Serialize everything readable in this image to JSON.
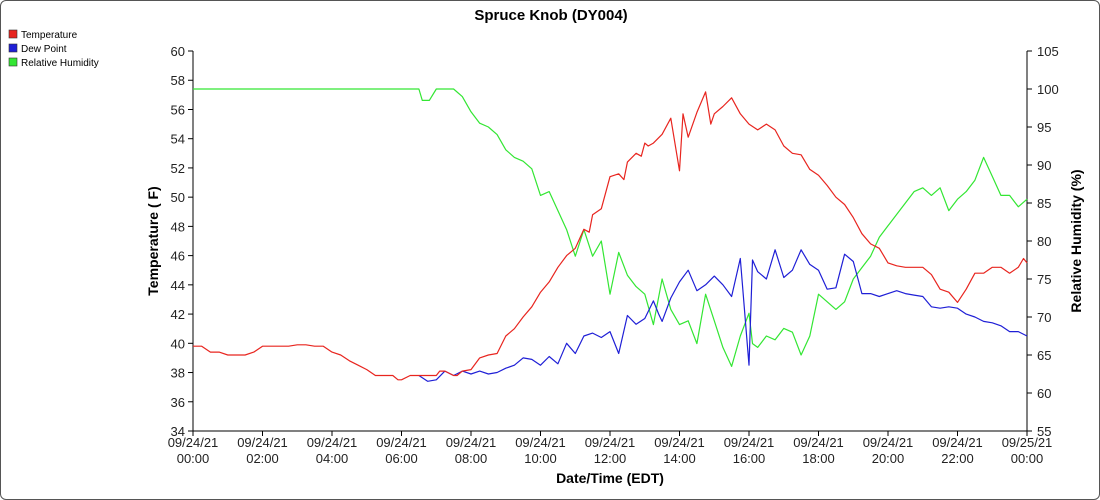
{
  "chart_data": {
    "type": "line",
    "title": "Spruce Knob (DY004)",
    "xlabel": "Date/Time (EDT)",
    "ylabel": "Temperature ( F)",
    "y2label": "Relative Humidity (%)",
    "ylim": [
      34,
      60
    ],
    "y2lim": [
      55,
      105
    ],
    "xlim_hours": [
      0,
      24
    ],
    "y_ticks": [
      "34",
      "36",
      "38",
      "40",
      "42",
      "44",
      "46",
      "48",
      "50",
      "52",
      "54",
      "56",
      "58",
      "60"
    ],
    "y2_ticks": [
      "55",
      "60",
      "65",
      "70",
      "75",
      "80",
      "85",
      "90",
      "95",
      "100",
      "105"
    ],
    "x_ticks": [
      {
        "date": "09/24/21",
        "time": "00:00"
      },
      {
        "date": "09/24/21",
        "time": "02:00"
      },
      {
        "date": "09/24/21",
        "time": "04:00"
      },
      {
        "date": "09/24/21",
        "time": "06:00"
      },
      {
        "date": "09/24/21",
        "time": "08:00"
      },
      {
        "date": "09/24/21",
        "time": "10:00"
      },
      {
        "date": "09/24/21",
        "time": "12:00"
      },
      {
        "date": "09/24/21",
        "time": "14:00"
      },
      {
        "date": "09/24/21",
        "time": "16:00"
      },
      {
        "date": "09/24/21",
        "time": "18:00"
      },
      {
        "date": "09/24/21",
        "time": "20:00"
      },
      {
        "date": "09/24/21",
        "time": "22:00"
      },
      {
        "date": "09/25/21",
        "time": "00:00"
      }
    ],
    "legend_position": "top-left",
    "grid": false,
    "series": [
      {
        "name": "Temperature",
        "color": "#e8251f",
        "axis": "left",
        "points": [
          [
            0.0,
            39.8
          ],
          [
            0.25,
            39.8
          ],
          [
            0.5,
            39.4
          ],
          [
            0.75,
            39.4
          ],
          [
            1.0,
            39.2
          ],
          [
            1.5,
            39.2
          ],
          [
            1.75,
            39.4
          ],
          [
            2.0,
            39.8
          ],
          [
            2.5,
            39.8
          ],
          [
            2.75,
            39.8
          ],
          [
            3.0,
            39.9
          ],
          [
            3.25,
            39.9
          ],
          [
            3.5,
            39.8
          ],
          [
            3.75,
            39.8
          ],
          [
            4.0,
            39.4
          ],
          [
            4.25,
            39.2
          ],
          [
            4.5,
            38.8
          ],
          [
            4.75,
            38.5
          ],
          [
            5.0,
            38.2
          ],
          [
            5.25,
            37.8
          ],
          [
            5.5,
            37.8
          ],
          [
            5.75,
            37.8
          ],
          [
            5.9,
            37.5
          ],
          [
            6.0,
            37.5
          ],
          [
            6.25,
            37.8
          ],
          [
            6.5,
            37.8
          ],
          [
            6.75,
            37.8
          ],
          [
            7.0,
            37.8
          ],
          [
            7.1,
            38.1
          ],
          [
            7.25,
            38.1
          ],
          [
            7.5,
            37.8
          ],
          [
            7.6,
            37.8
          ],
          [
            7.75,
            38.1
          ],
          [
            8.0,
            38.2
          ],
          [
            8.25,
            39.0
          ],
          [
            8.5,
            39.2
          ],
          [
            8.75,
            39.3
          ],
          [
            9.0,
            40.5
          ],
          [
            9.25,
            41.0
          ],
          [
            9.5,
            41.8
          ],
          [
            9.75,
            42.5
          ],
          [
            10.0,
            43.5
          ],
          [
            10.25,
            44.2
          ],
          [
            10.5,
            45.2
          ],
          [
            10.75,
            46.0
          ],
          [
            11.0,
            46.5
          ],
          [
            11.25,
            47.8
          ],
          [
            11.4,
            47.6
          ],
          [
            11.5,
            48.8
          ],
          [
            11.75,
            49.2
          ],
          [
            12.0,
            51.4
          ],
          [
            12.25,
            51.6
          ],
          [
            12.4,
            51.2
          ],
          [
            12.5,
            52.4
          ],
          [
            12.75,
            53.0
          ],
          [
            12.9,
            52.8
          ],
          [
            13.0,
            53.7
          ],
          [
            13.1,
            53.5
          ],
          [
            13.25,
            53.7
          ],
          [
            13.5,
            54.3
          ],
          [
            13.75,
            55.4
          ],
          [
            14.0,
            51.8
          ],
          [
            14.1,
            55.7
          ],
          [
            14.25,
            54.1
          ],
          [
            14.5,
            55.8
          ],
          [
            14.75,
            57.2
          ],
          [
            14.9,
            55.0
          ],
          [
            15.0,
            55.7
          ],
          [
            15.25,
            56.2
          ],
          [
            15.5,
            56.8
          ],
          [
            15.75,
            55.7
          ],
          [
            16.0,
            55.0
          ],
          [
            16.25,
            54.6
          ],
          [
            16.5,
            55.0
          ],
          [
            16.75,
            54.6
          ],
          [
            17.0,
            53.5
          ],
          [
            17.25,
            53.0
          ],
          [
            17.5,
            52.9
          ],
          [
            17.75,
            51.9
          ],
          [
            18.0,
            51.5
          ],
          [
            18.25,
            50.8
          ],
          [
            18.5,
            50.0
          ],
          [
            18.75,
            49.5
          ],
          [
            19.0,
            48.6
          ],
          [
            19.25,
            47.5
          ],
          [
            19.5,
            46.8
          ],
          [
            19.75,
            46.5
          ],
          [
            20.0,
            45.5
          ],
          [
            20.25,
            45.3
          ],
          [
            20.5,
            45.2
          ],
          [
            20.75,
            45.2
          ],
          [
            21.0,
            45.2
          ],
          [
            21.25,
            44.7
          ],
          [
            21.5,
            43.7
          ],
          [
            21.75,
            43.5
          ],
          [
            22.0,
            42.8
          ],
          [
            22.25,
            43.7
          ],
          [
            22.5,
            44.8
          ],
          [
            22.75,
            44.8
          ],
          [
            23.0,
            45.2
          ],
          [
            23.25,
            45.2
          ],
          [
            23.5,
            44.8
          ],
          [
            23.75,
            45.2
          ],
          [
            23.9,
            45.8
          ],
          [
            24.0,
            45.5
          ],
          [
            24.25,
            44.6
          ]
        ]
      },
      {
        "name": "Dew Point",
        "color": "#1f1fd6",
        "axis": "left",
        "points": [
          [
            6.5,
            37.8
          ],
          [
            6.75,
            37.4
          ],
          [
            7.0,
            37.5
          ],
          [
            7.25,
            38.1
          ],
          [
            7.5,
            37.8
          ],
          [
            7.75,
            38.1
          ],
          [
            8.0,
            37.9
          ],
          [
            8.25,
            38.1
          ],
          [
            8.5,
            37.9
          ],
          [
            8.75,
            38.0
          ],
          [
            9.0,
            38.3
          ],
          [
            9.25,
            38.5
          ],
          [
            9.5,
            39.0
          ],
          [
            9.75,
            38.9
          ],
          [
            10.0,
            38.5
          ],
          [
            10.25,
            39.1
          ],
          [
            10.5,
            38.6
          ],
          [
            10.75,
            40.0
          ],
          [
            11.0,
            39.3
          ],
          [
            11.25,
            40.5
          ],
          [
            11.5,
            40.7
          ],
          [
            11.75,
            40.4
          ],
          [
            12.0,
            40.8
          ],
          [
            12.25,
            39.3
          ],
          [
            12.5,
            41.9
          ],
          [
            12.75,
            41.3
          ],
          [
            13.0,
            41.7
          ],
          [
            13.25,
            42.9
          ],
          [
            13.4,
            42.0
          ],
          [
            13.5,
            41.5
          ],
          [
            13.75,
            43.1
          ],
          [
            14.0,
            44.2
          ],
          [
            14.25,
            45.0
          ],
          [
            14.5,
            43.6
          ],
          [
            14.75,
            44.0
          ],
          [
            15.0,
            44.6
          ],
          [
            15.25,
            44.0
          ],
          [
            15.5,
            43.2
          ],
          [
            15.75,
            45.8
          ],
          [
            16.0,
            38.5
          ],
          [
            16.1,
            45.7
          ],
          [
            16.25,
            44.9
          ],
          [
            16.5,
            44.4
          ],
          [
            16.75,
            46.4
          ],
          [
            17.0,
            44.5
          ],
          [
            17.25,
            45.0
          ],
          [
            17.5,
            46.4
          ],
          [
            17.75,
            45.4
          ],
          [
            18.0,
            45.0
          ],
          [
            18.25,
            43.7
          ],
          [
            18.5,
            43.8
          ],
          [
            18.75,
            46.1
          ],
          [
            19.0,
            45.6
          ],
          [
            19.25,
            43.4
          ],
          [
            19.5,
            43.4
          ],
          [
            19.75,
            43.2
          ],
          [
            20.0,
            43.4
          ],
          [
            20.25,
            43.6
          ],
          [
            20.5,
            43.4
          ],
          [
            20.75,
            43.3
          ],
          [
            21.0,
            43.2
          ],
          [
            21.25,
            42.5
          ],
          [
            21.5,
            42.4
          ],
          [
            21.75,
            42.5
          ],
          [
            22.0,
            42.4
          ],
          [
            22.25,
            42.0
          ],
          [
            22.5,
            41.8
          ],
          [
            22.75,
            41.5
          ],
          [
            23.0,
            41.4
          ],
          [
            23.25,
            41.2
          ],
          [
            23.5,
            40.8
          ],
          [
            23.75,
            40.8
          ],
          [
            24.0,
            40.5
          ],
          [
            24.25,
            40.2
          ]
        ]
      },
      {
        "name": "Relative Humidity",
        "color": "#33e633",
        "axis": "right",
        "points": [
          [
            0.0,
            100.0
          ],
          [
            6.5,
            100.0
          ],
          [
            6.6,
            98.5
          ],
          [
            6.8,
            98.5
          ],
          [
            7.0,
            100.0
          ],
          [
            7.5,
            100.0
          ],
          [
            7.75,
            99.0
          ],
          [
            8.0,
            97.0
          ],
          [
            8.25,
            95.5
          ],
          [
            8.5,
            95.0
          ],
          [
            8.75,
            94.0
          ],
          [
            9.0,
            92.0
          ],
          [
            9.25,
            91.0
          ],
          [
            9.5,
            90.5
          ],
          [
            9.75,
            89.5
          ],
          [
            10.0,
            86.0
          ],
          [
            10.25,
            86.5
          ],
          [
            10.5,
            84.0
          ],
          [
            10.75,
            81.5
          ],
          [
            11.0,
            78.0
          ],
          [
            11.25,
            81.5
          ],
          [
            11.5,
            78.0
          ],
          [
            11.75,
            80.0
          ],
          [
            12.0,
            73.0
          ],
          [
            12.25,
            78.5
          ],
          [
            12.5,
            75.5
          ],
          [
            12.75,
            74.0
          ],
          [
            13.0,
            73.0
          ],
          [
            13.25,
            69.0
          ],
          [
            13.5,
            75.0
          ],
          [
            13.75,
            71.0
          ],
          [
            14.0,
            69.0
          ],
          [
            14.25,
            69.5
          ],
          [
            14.5,
            66.5
          ],
          [
            14.75,
            73.0
          ],
          [
            15.0,
            69.5
          ],
          [
            15.25,
            66.0
          ],
          [
            15.5,
            63.5
          ],
          [
            15.75,
            67.5
          ],
          [
            16.0,
            70.5
          ],
          [
            16.1,
            66.5
          ],
          [
            16.25,
            66.0
          ],
          [
            16.5,
            67.5
          ],
          [
            16.75,
            67.0
          ],
          [
            17.0,
            68.5
          ],
          [
            17.25,
            68.0
          ],
          [
            17.5,
            65.0
          ],
          [
            17.75,
            67.5
          ],
          [
            18.0,
            73.0
          ],
          [
            18.25,
            72.0
          ],
          [
            18.5,
            71.0
          ],
          [
            18.75,
            72.0
          ],
          [
            19.0,
            75.0
          ],
          [
            19.25,
            76.5
          ],
          [
            19.5,
            78.0
          ],
          [
            19.75,
            80.5
          ],
          [
            20.0,
            82.0
          ],
          [
            20.25,
            83.5
          ],
          [
            20.5,
            85.0
          ],
          [
            20.75,
            86.5
          ],
          [
            21.0,
            87.0
          ],
          [
            21.25,
            86.0
          ],
          [
            21.5,
            87.0
          ],
          [
            21.75,
            84.0
          ],
          [
            22.0,
            85.5
          ],
          [
            22.25,
            86.5
          ],
          [
            22.5,
            88.0
          ],
          [
            22.75,
            91.0
          ],
          [
            23.0,
            88.5
          ],
          [
            23.25,
            86.0
          ],
          [
            23.5,
            86.0
          ],
          [
            23.75,
            84.5
          ],
          [
            24.0,
            85.5
          ],
          [
            24.25,
            80.5
          ],
          [
            24.5,
            85.0
          ]
        ]
      }
    ]
  }
}
